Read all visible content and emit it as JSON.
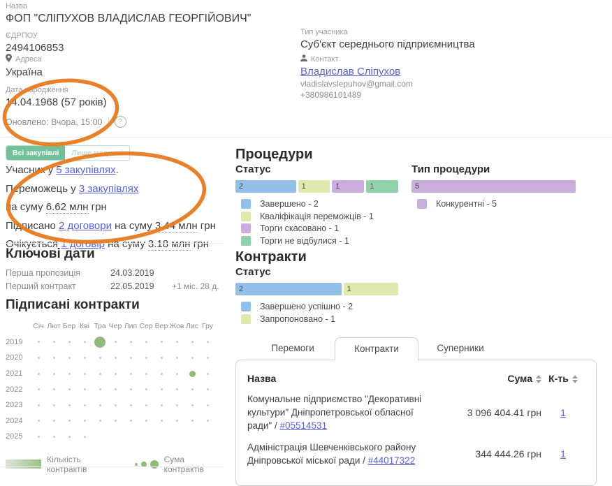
{
  "profile": {
    "name_label": "Назва",
    "name": "ФОП \"СЛІПУХОВ ВЛАДИСЛАВ ГЕОРГІЙОВИЧ\"",
    "edrpou_label": "ЄДРПОУ",
    "edrpou": "2494106853",
    "address_label": "Адреса",
    "address": "Україна",
    "birth_label": "Дата народження",
    "birth": "14.04.1968 (57 років)",
    "updated": "Оновлено: Вчора, 15:00",
    "type_label": "Тип учасника",
    "type": "Суб'єкт середнього підприємництва",
    "contact_label": "Контакт",
    "contact_name": "Владислав Сліпухов",
    "contact_email": "vladislavslepuhov@gmail.com",
    "contact_phone": "+380986101489"
  },
  "filter": {
    "all_label": "Всі закупівлі",
    "alt_label": "Лише медичні"
  },
  "stats": {
    "participant_pre": "Учасник у ",
    "participant_link": "5 закупівлях",
    "participant_post": ".",
    "winner_pre": "Переможець у ",
    "winner_link": "3 закупівлях",
    "winner_sum_pre": "на суму ",
    "winner_sum": "6.62 млн",
    "winner_sum_post": " грн",
    "signed_pre": "Підписано ",
    "signed_link": "2 договори",
    "signed_mid": " на суму ",
    "signed_sum": "3.44 млн",
    "signed_sum_post": " грн",
    "expected_pre": "Очікується ",
    "expected_link": "1 договір",
    "expected_mid": " на суму ",
    "expected_sum": "3.18 млн",
    "expected_sum_post": " грн"
  },
  "key_dates": {
    "title": "Ключові дати",
    "rows": [
      {
        "label": "Перша пропозиція",
        "date": "24.03.2019",
        "delta": ""
      },
      {
        "label": "Перший контракт",
        "date": "22.05.2019",
        "delta": "+1 міс. 28 д."
      }
    ]
  },
  "calendar": {
    "title": "Підписані контракти",
    "months": [
      "Січ",
      "Лют",
      "Бер",
      "Кві",
      "Тра",
      "Чер",
      "Лип",
      "Сер",
      "Вер",
      "Жов",
      "Лис",
      "Гру"
    ],
    "years": [
      "2019",
      "2020",
      "2021",
      "2022",
      "2023",
      "2024",
      "2025"
    ],
    "dots": [
      {
        "year": "2019",
        "month_index": 4,
        "size": "large"
      },
      {
        "year": "2021",
        "month_index": 10,
        "size": "small"
      }
    ],
    "last_year_months": 4,
    "legend": {
      "count_label": "Кількість контрактів",
      "sum_label": "Сума контрактів"
    }
  },
  "procedures": {
    "title": "Процедури",
    "status": {
      "title": "Статус",
      "segments": [
        {
          "label": "Завершено",
          "value": 2,
          "color": "#93c0e8"
        },
        {
          "label": "Кваліфікація переможців",
          "value": 1,
          "color": "#dfe9ad"
        },
        {
          "label": "Торги скасовано",
          "value": 1,
          "color": "#cbaede"
        },
        {
          "label": "Торги не відбулися",
          "value": 1,
          "color": "#90d3ab"
        }
      ]
    },
    "type": {
      "title": "Тип процедури",
      "segments": [
        {
          "label": "Конкурентні",
          "value": 5,
          "color": "#c9addd"
        }
      ]
    }
  },
  "contracts_chart": {
    "title": "Контракти",
    "status": {
      "title": "Статус",
      "segments": [
        {
          "label": "Завершено успішно",
          "value": 2,
          "color": "#93c0e8"
        },
        {
          "label": "Запропоновано",
          "value": 1,
          "color": "#dfe9ad"
        }
      ]
    }
  },
  "results": {
    "tabs": [
      {
        "label": "Перемоги",
        "active": false
      },
      {
        "label": "Контракти",
        "active": true
      },
      {
        "label": "Суперники",
        "active": false
      }
    ],
    "table": {
      "name_header": "Назва",
      "sum_header": "Сума",
      "count_header": "К-ть",
      "rows": [
        {
          "name": "Комунальне підприємство \"Декоративні культури\" Дніпропетровської обласної ради\" / ",
          "link": "#05514531",
          "sum": "3 096 404.41 грн",
          "count": "1"
        },
        {
          "name": "Адміністрація Шевченківського району Дніпровської міської ради / ",
          "link": "#44017322",
          "sum": "344 444.26 грн",
          "count": "1"
        }
      ]
    }
  },
  "annotation": {
    "color": "#e87a1f"
  }
}
